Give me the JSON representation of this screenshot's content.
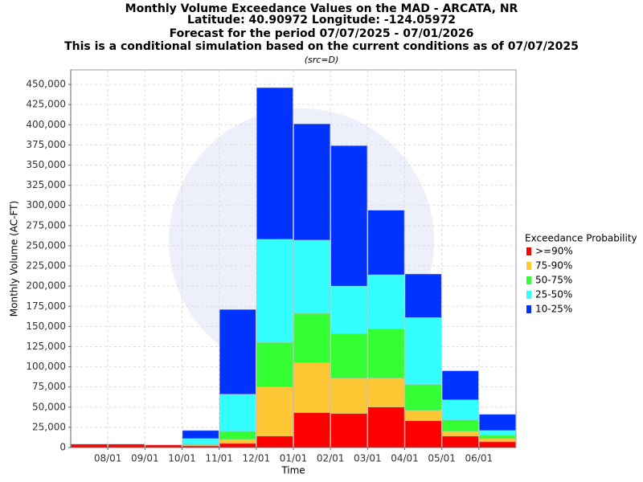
{
  "chart_data": {
    "type": "bar",
    "title": "Monthly Volume Exceedance Values on the MAD - ARCATA, NR",
    "title_lines": [
      "Latitude: 40.90972 Longitude: -124.05972",
      "Forecast for the period 07/07/2025 - 07/01/2026",
      "This is a conditional simulation based on the current conditions as of 07/07/2025"
    ],
    "subtitle": "(src=D)",
    "x_label": "Time",
    "y_label": "Monthly Volume (AC-FT)",
    "legend_title": "Exceedance Probability",
    "legend": "right",
    "grid": true,
    "categories": [
      null,
      "08/01",
      "09/01",
      "10/01",
      "11/01",
      "12/01",
      "01/01",
      "02/01",
      "03/01",
      "04/01",
      "05/01",
      "06/01"
    ],
    "series": [
      {
        "name": ">=90%",
        "color": "#ff0000",
        "values": [
          4000,
          4000,
          3000,
          2000,
          5000,
          14000,
          43000,
          42000,
          50000,
          33000,
          14000,
          7000
        ]
      },
      {
        "name": "75-90%",
        "color": "#ffc733",
        "values": [
          4000,
          4000,
          3000,
          3000,
          10000,
          75000,
          105000,
          86000,
          86000,
          46000,
          20000,
          11000
        ]
      },
      {
        "name": "50-75%",
        "color": "#33ff33",
        "values": [
          4000,
          4000,
          3000,
          4000,
          20000,
          130000,
          166000,
          141000,
          147000,
          78000,
          34000,
          15000
        ]
      },
      {
        "name": "25-50%",
        "color": "#33ffff",
        "values": [
          4000,
          4000,
          3000,
          11000,
          66000,
          258000,
          257000,
          200000,
          214000,
          161000,
          59000,
          21000
        ]
      },
      {
        "name": "10-25%",
        "color": "#0033ff",
        "values": [
          4000,
          4000,
          3000,
          21000,
          171000,
          446000,
          401000,
          374000,
          294000,
          215000,
          95000,
          41000
        ]
      }
    ],
    "ylim": [
      0,
      468000
    ],
    "yticks": [
      0,
      {
        "value": 25000,
        "label": "25,000"
      },
      {
        "value": 50000,
        "label": "50,000"
      },
      {
        "value": 75000,
        "label": "75,000"
      },
      {
        "value": 100000,
        "label": "100,000"
      },
      {
        "value": 125000,
        "label": "125,000"
      },
      {
        "value": 150000,
        "label": "150,000"
      },
      {
        "value": 175000,
        "label": "175,000"
      },
      {
        "value": 200000,
        "label": "200,000"
      },
      {
        "value": 225000,
        "label": "225,000"
      },
      {
        "value": 250000,
        "label": "250,000"
      },
      {
        "value": 275000,
        "label": "275,000"
      },
      {
        "value": 300000,
        "label": "300,000"
      },
      {
        "value": 325000,
        "label": "325,000"
      },
      {
        "value": 350000,
        "label": "350,000"
      },
      {
        "value": 375000,
        "label": "375,000"
      },
      {
        "value": 400000,
        "label": "400,000"
      },
      {
        "value": 425000,
        "label": "425,000"
      },
      {
        "value": 450000,
        "label": "450,000"
      }
    ]
  }
}
